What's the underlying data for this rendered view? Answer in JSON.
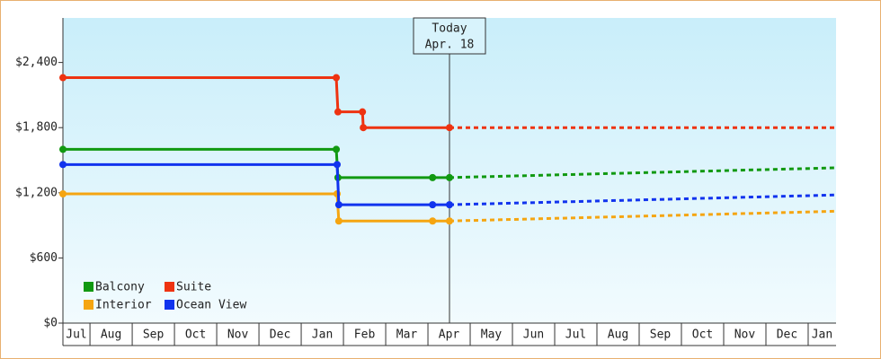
{
  "chart_data": {
    "type": "line",
    "xlim": [
      0.36,
      18.66
    ],
    "xticks": [
      {
        "value": 0,
        "label": "Jul"
      },
      {
        "value": 1,
        "label": "Aug"
      },
      {
        "value": 2,
        "label": "Sep"
      },
      {
        "value": 3,
        "label": "Oct"
      },
      {
        "value": 4,
        "label": "Nov"
      },
      {
        "value": 5,
        "label": "Dec"
      },
      {
        "value": 6,
        "label": "Jan"
      },
      {
        "value": 7,
        "label": "Feb"
      },
      {
        "value": 8,
        "label": "Mar"
      },
      {
        "value": 9,
        "label": "Apr"
      },
      {
        "value": 10,
        "label": "May"
      },
      {
        "value": 11,
        "label": "Jun"
      },
      {
        "value": 12,
        "label": "Jul"
      },
      {
        "value": 13,
        "label": "Aug"
      },
      {
        "value": 14,
        "label": "Sep"
      },
      {
        "value": 15,
        "label": "Oct"
      },
      {
        "value": 16,
        "label": "Nov"
      },
      {
        "value": 17,
        "label": "Dec"
      },
      {
        "value": 18,
        "label": "Jan"
      }
    ],
    "ylim": [
      0,
      2810
    ],
    "yticks": [
      {
        "value": 0,
        "label": "$0"
      },
      {
        "value": 600,
        "label": "$600"
      },
      {
        "value": 1200,
        "label": "$1,200"
      },
      {
        "value": 1800,
        "label": "$1,800"
      },
      {
        "value": 2400,
        "label": "$2,400"
      }
    ],
    "grid": true,
    "legend": "lower left",
    "annotation": {
      "x": 9.51,
      "lines": [
        "Today",
        "Apr. 18"
      ]
    },
    "series": [
      {
        "name": "Balcony",
        "color": "#119911",
        "x": [
          0.36,
          6.83,
          6.87,
          9.11,
          9.51
        ],
        "values": [
          1600,
          1600,
          1340,
          1340,
          1340
        ],
        "forecast_x": [
          9.51,
          18.66
        ],
        "forecast_values": [
          1340,
          1430
        ]
      },
      {
        "name": "Suite",
        "color": "#ee3311",
        "x": [
          0.36,
          6.83,
          6.87,
          7.45,
          7.47,
          9.51
        ],
        "values": [
          2260,
          2260,
          1945,
          1945,
          1800,
          1800
        ],
        "forecast_x": [
          9.51,
          18.66
        ],
        "forecast_values": [
          1800,
          1800
        ]
      },
      {
        "name": "Interior",
        "color": "#f5a511",
        "x": [
          0.36,
          6.85,
          6.89,
          9.11,
          9.51
        ],
        "values": [
          1190,
          1190,
          940,
          940,
          940
        ],
        "forecast_x": [
          9.51,
          18.66
        ],
        "forecast_values": [
          940,
          1030
        ]
      },
      {
        "name": "Ocean View",
        "color": "#1133ee",
        "x": [
          0.36,
          6.85,
          6.89,
          9.11,
          9.51
        ],
        "values": [
          1460,
          1460,
          1090,
          1090,
          1090
        ],
        "forecast_x": [
          9.51,
          18.66
        ],
        "forecast_values": [
          1090,
          1180
        ]
      }
    ]
  }
}
